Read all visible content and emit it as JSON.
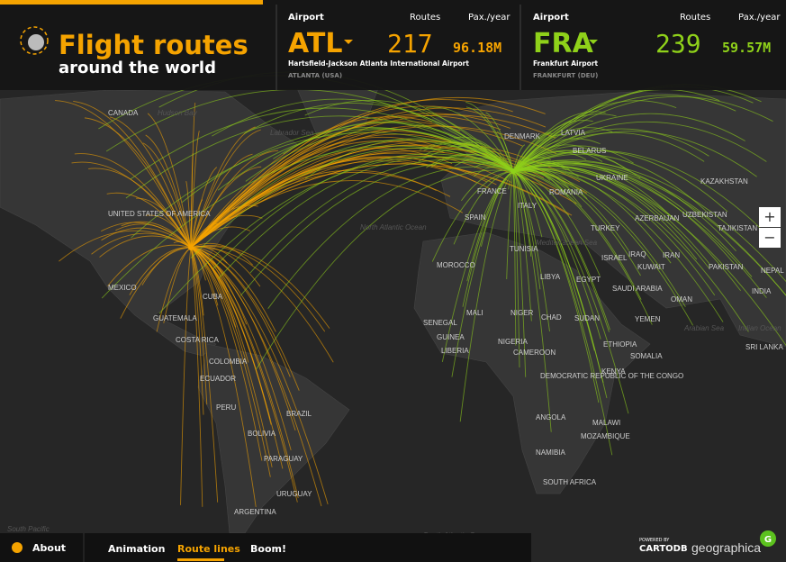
{
  "header": {
    "title": "Flight routes",
    "subtitle": "around the world"
  },
  "panels": [
    {
      "airport_label": "Airport",
      "routes_label": "Routes",
      "pax_label": "Pax./year",
      "code": "ATL",
      "routes": "217",
      "pax": "96.18M",
      "name": "Hartsfield-Jackson Atlanta International Airport",
      "city": "ATLANTA (USA)"
    },
    {
      "airport_label": "Airport",
      "routes_label": "Routes",
      "pax_label": "Pax./year",
      "code": "FRA",
      "routes": "239",
      "pax": "59.57M",
      "name": "Frankfurt Airport",
      "city": "FRANKFURT (DEU)"
    }
  ],
  "map": {
    "labels": [
      "CANADA",
      "Hudson Bay",
      "Labrador Sea",
      "UNITED STATES OF AMERICA",
      "MEXICO",
      "CUBA",
      "GUATEMALA",
      "COSTA RICA",
      "COLOMBIA",
      "ECUADOR",
      "PERU",
      "BRAZIL",
      "BOLIVIA",
      "PARAGUAY",
      "URUGUAY",
      "ARGENTINA",
      "North Atlantic Ocean",
      "South Atlantic Ocean",
      "South Pacific",
      "MOROCCO",
      "SENEGAL",
      "GUINEA",
      "LIBERIA",
      "MALI",
      "NIGER",
      "NIGERIA",
      "CAMEROON",
      "CHAD",
      "LIBYA",
      "TUNISIA",
      "EGYPT",
      "SUDAN",
      "ETHIOPIA",
      "SOMALIA",
      "KENYA",
      "DEMOCRATIC REPUBLIC OF THE CONGO",
      "ANGOLA",
      "MALAWI",
      "MOZAMBIQUE",
      "NAMIBIA",
      "SOUTH AFRICA",
      "SAUDI ARABIA",
      "YEMEN",
      "OMAN",
      "IRAQ",
      "IRAN",
      "KUWAIT",
      "ISRAEL",
      "TURKEY",
      "UKRAINE",
      "ROMANIA",
      "FRANCE",
      "SPAIN",
      "ITALY",
      "DENMARK",
      "LATVIA",
      "BELARUS",
      "KAZAKHSTAN",
      "UZBEKISTAN",
      "AZERBAIJAN",
      "TAJIKISTAN",
      "PAKISTAN",
      "NEPAL",
      "INDIA",
      "SRI LANKA",
      "Arabian Sea",
      "Indian Ocean",
      "Mediterranean Sea"
    ],
    "zoom_in": "+",
    "zoom_out": "−"
  },
  "footer": {
    "about": "About",
    "tabs": [
      "Animation",
      "Route lines",
      "Boom!"
    ],
    "powered_by": "POWERED BY",
    "cartodb": "CARTODB",
    "brand": "geographica",
    "brand_icon": "G"
  }
}
